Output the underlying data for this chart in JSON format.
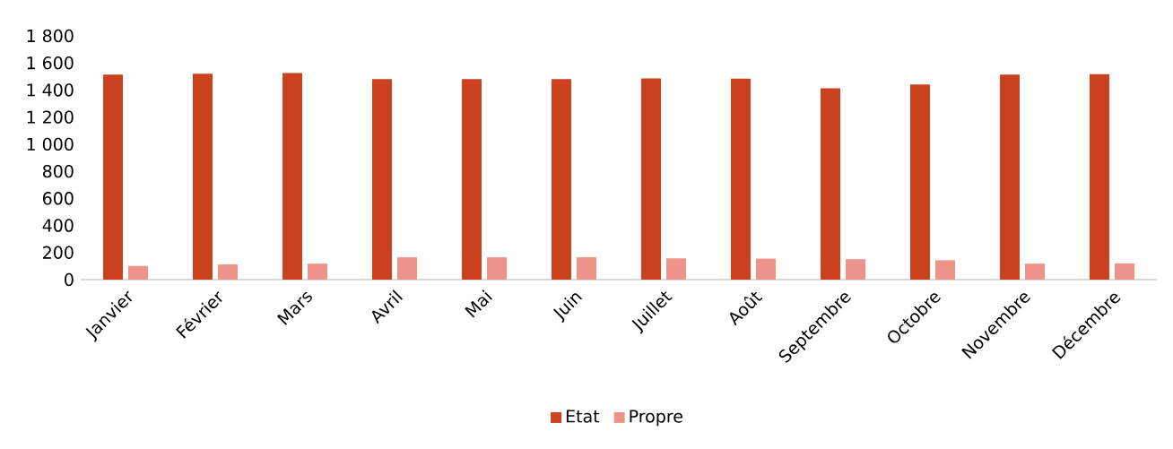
{
  "chart_data": {
    "type": "bar",
    "categories": [
      "Janvier",
      "Février",
      "Mars",
      "Avril",
      "Mai",
      "Juin",
      "Juillet",
      "Août",
      "Septembre",
      "Octobre",
      "Novembre",
      "Décembre"
    ],
    "series": [
      {
        "name": "Etat",
        "color": "#cc421e",
        "values": [
          1514,
          1520,
          1525,
          1481,
          1481,
          1481,
          1486,
          1484,
          1413,
          1441,
          1514,
          1517
        ]
      },
      {
        "name": "Propre",
        "color": "#ee938a",
        "values": [
          101,
          112,
          118,
          165,
          165,
          165,
          157,
          155,
          151,
          143,
          118,
          120
        ]
      }
    ],
    "ylim": [
      0,
      1800
    ],
    "yticks": [
      0,
      200,
      400,
      600,
      800,
      {
        "value": 1000,
        "label": "1 000"
      },
      {
        "value": 1200,
        "label": "1 200"
      },
      {
        "value": 1400,
        "label": "1 400"
      },
      {
        "value": 1600,
        "label": "1 600"
      },
      {
        "value": 1800,
        "label": "1 800"
      }
    ],
    "grid": false,
    "legend": "bottom"
  }
}
